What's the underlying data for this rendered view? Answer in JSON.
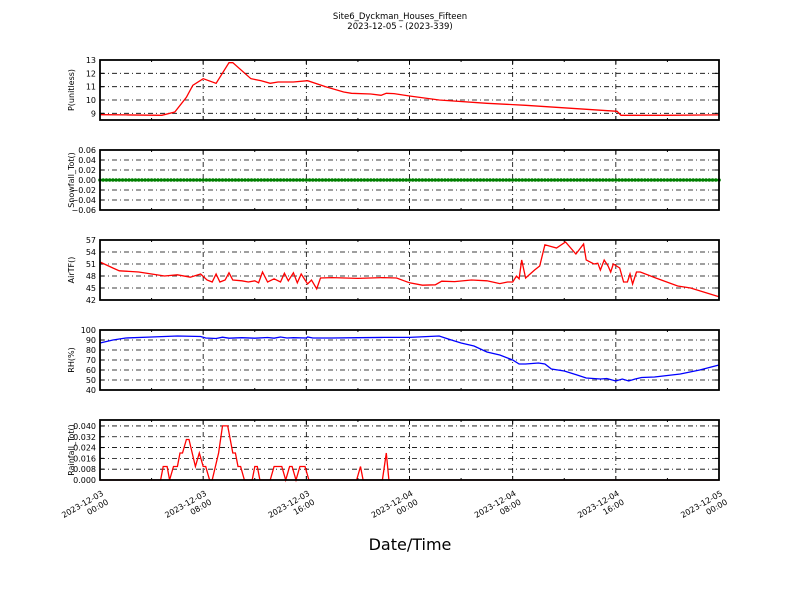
{
  "chart_data": {
    "type": "line",
    "title": "Site6_Dyckman_Houses_Fifteen",
    "subtitle": "2023-12-05 - (2023-339)",
    "xlabel": "Date/Time",
    "x_units": "hours since 2023-12-03 00:00",
    "xlim": [
      0,
      48
    ],
    "x_ticks": [
      0,
      8,
      16,
      24,
      32,
      40,
      48
    ],
    "x_tick_labels": [
      [
        "2023-12-03",
        "00:00"
      ],
      [
        "2023-12-03",
        "08:00"
      ],
      [
        "2023-12-03",
        "16:00"
      ],
      [
        "2023-12-04",
        "00:00"
      ],
      [
        "2023-12-04",
        "08:00"
      ],
      [
        "2023-12-04",
        "16:00"
      ],
      [
        "2023-12-05",
        "00:00"
      ]
    ],
    "grid": true,
    "panels": [
      {
        "name": "p",
        "ylabel": "P(unitless)",
        "color": "#ff0000",
        "ylim": [
          8.5,
          13
        ],
        "y_ticks": [
          9,
          10,
          11,
          12,
          13
        ],
        "y_tick_labels": [
          "9",
          "10",
          "11",
          "12",
          "13"
        ],
        "points": [
          [
            0,
            8.9
          ],
          [
            2,
            8.88
          ],
          [
            4.8,
            8.85
          ],
          [
            5.8,
            9.1
          ],
          [
            6.7,
            10.2
          ],
          [
            7.2,
            11.1
          ],
          [
            8,
            11.6
          ],
          [
            9,
            11.25
          ],
          [
            10,
            12.8
          ],
          [
            10.3,
            12.8
          ],
          [
            11.7,
            11.6
          ],
          [
            12.5,
            11.45
          ],
          [
            13.2,
            11.25
          ],
          [
            13.8,
            11.35
          ],
          [
            15,
            11.35
          ],
          [
            16.1,
            11.45
          ],
          [
            17.5,
            11.0
          ],
          [
            18.9,
            10.6
          ],
          [
            19.5,
            10.5
          ],
          [
            21,
            10.45
          ],
          [
            21.8,
            10.35
          ],
          [
            22.2,
            10.5
          ],
          [
            22.8,
            10.48
          ],
          [
            24,
            10.3
          ],
          [
            26.3,
            10.0
          ],
          [
            30,
            9.75
          ],
          [
            33,
            9.6
          ],
          [
            37,
            9.35
          ],
          [
            40.1,
            9.15
          ],
          [
            40.4,
            8.85
          ],
          [
            44,
            8.85
          ],
          [
            48,
            8.88
          ]
        ]
      },
      {
        "name": "snowfall",
        "ylabel": "Snowfall_Tot()",
        "color": "#007f00",
        "markers": true,
        "ylim": [
          -0.06,
          0.06
        ],
        "y_ticks": [
          -0.06,
          -0.04,
          -0.02,
          0,
          0.02,
          0.04,
          0.06
        ],
        "y_tick_labels": [
          "−0.06",
          "−0.04",
          "−0.02",
          "0.00",
          "0.02",
          "0.04",
          "0.06"
        ],
        "constant_series": {
          "start": 0,
          "end": 48,
          "interval_hours": 0.25,
          "value": 0
        }
      },
      {
        "name": "airt",
        "ylabel": "AirTF()",
        "color": "#ff0000",
        "ylim": [
          42,
          57
        ],
        "y_ticks": [
          42,
          45,
          48,
          51,
          54,
          57
        ],
        "y_tick_labels": [
          "42",
          "45",
          "48",
          "51",
          "54",
          "57"
        ],
        "points": [
          [
            0,
            51.5
          ],
          [
            1,
            50
          ],
          [
            1.5,
            49.3
          ],
          [
            3,
            49
          ],
          [
            4,
            48.5
          ],
          [
            5,
            48
          ],
          [
            6,
            48.3
          ],
          [
            7,
            47.7
          ],
          [
            7.8,
            48.5
          ],
          [
            8.3,
            47
          ],
          [
            8.7,
            46.5
          ],
          [
            9,
            48.5
          ],
          [
            9.3,
            46.5
          ],
          [
            9.7,
            47
          ],
          [
            10,
            48.8
          ],
          [
            10.3,
            47
          ],
          [
            11,
            46.8
          ],
          [
            11.5,
            46.5
          ],
          [
            12,
            46.8
          ],
          [
            12.3,
            46.3
          ],
          [
            12.6,
            49
          ],
          [
            13,
            46.5
          ],
          [
            13.5,
            47.3
          ],
          [
            14,
            46.5
          ],
          [
            14.3,
            48.7
          ],
          [
            14.6,
            46.8
          ],
          [
            15,
            48.8
          ],
          [
            15.3,
            46.3
          ],
          [
            15.6,
            48.5
          ],
          [
            16.1,
            46
          ],
          [
            16.4,
            47
          ],
          [
            16.8,
            44.8
          ],
          [
            17.1,
            47.5
          ],
          [
            18,
            47.6
          ],
          [
            20,
            47.4
          ],
          [
            22,
            47.6
          ],
          [
            23,
            47.5
          ],
          [
            24,
            46.3
          ],
          [
            25,
            45.7
          ],
          [
            26,
            45.8
          ],
          [
            26.5,
            46.7
          ],
          [
            27.5,
            46.6
          ],
          [
            28.8,
            47
          ],
          [
            30,
            46.8
          ],
          [
            31,
            46.1
          ],
          [
            31.6,
            46.5
          ],
          [
            32,
            46.5
          ],
          [
            32.3,
            48
          ],
          [
            32.5,
            47.3
          ],
          [
            32.7,
            52
          ],
          [
            33,
            47.5
          ],
          [
            33.7,
            49.5
          ],
          [
            34.1,
            50.5
          ],
          [
            34.5,
            55.8
          ],
          [
            35.4,
            55
          ],
          [
            36.1,
            56.5
          ],
          [
            36.9,
            53.5
          ],
          [
            37.5,
            56
          ],
          [
            37.7,
            52
          ],
          [
            38.3,
            51
          ],
          [
            38.6,
            51.2
          ],
          [
            38.8,
            49.5
          ],
          [
            39.1,
            52
          ],
          [
            39.4,
            50.5
          ],
          [
            39.6,
            49
          ],
          [
            39.8,
            51
          ],
          [
            40.3,
            50
          ],
          [
            40.6,
            46.5
          ],
          [
            40.9,
            46.5
          ],
          [
            41.1,
            48.5
          ],
          [
            41.3,
            46
          ],
          [
            41.6,
            49
          ],
          [
            41.9,
            49
          ],
          [
            43.1,
            47.5
          ],
          [
            44.8,
            45.5
          ],
          [
            45.8,
            45
          ],
          [
            48,
            42.8
          ]
        ]
      },
      {
        "name": "rh",
        "ylabel": "RH(%)",
        "color": "#0000ff",
        "ylim": [
          40,
          100
        ],
        "y_ticks": [
          40,
          50,
          60,
          70,
          80,
          90,
          100
        ],
        "y_tick_labels": [
          "40",
          "50",
          "60",
          "70",
          "80",
          "90",
          "100"
        ],
        "points": [
          [
            0,
            87
          ],
          [
            1,
            90
          ],
          [
            2,
            92
          ],
          [
            4,
            93
          ],
          [
            6,
            94
          ],
          [
            7.8,
            93.5
          ],
          [
            8.2,
            92
          ],
          [
            9,
            91.5
          ],
          [
            9.5,
            92.8
          ],
          [
            10,
            91.8
          ],
          [
            11,
            92.3
          ],
          [
            12,
            91.8
          ],
          [
            13,
            92.5
          ],
          [
            13.5,
            91.8
          ],
          [
            14,
            93
          ],
          [
            14.5,
            92
          ],
          [
            15,
            92.3
          ],
          [
            16,
            92
          ],
          [
            16.1,
            93
          ],
          [
            16.5,
            92
          ],
          [
            18,
            92
          ],
          [
            20,
            92.3
          ],
          [
            22,
            92.6
          ],
          [
            24,
            92.6
          ],
          [
            26.3,
            94
          ],
          [
            27,
            91
          ],
          [
            28,
            87
          ],
          [
            29,
            84
          ],
          [
            30,
            78
          ],
          [
            31,
            75
          ],
          [
            32,
            70
          ],
          [
            32.5,
            66
          ],
          [
            33,
            66
          ],
          [
            34,
            67
          ],
          [
            34.5,
            66
          ],
          [
            35,
            61
          ],
          [
            36,
            59
          ],
          [
            37,
            55
          ],
          [
            37.7,
            52
          ],
          [
            38.8,
            51
          ],
          [
            39.3,
            51.5
          ],
          [
            40,
            49
          ],
          [
            40.5,
            51
          ],
          [
            41,
            49
          ],
          [
            41.5,
            51
          ],
          [
            42,
            52.5
          ],
          [
            43,
            53
          ],
          [
            45,
            56
          ],
          [
            46.5,
            60
          ],
          [
            48,
            65
          ]
        ]
      },
      {
        "name": "rainfall",
        "ylabel": "Rainfall_Tot()",
        "color": "#ff0000",
        "ylim": [
          0,
          0.0444
        ],
        "y_ticks": [
          0,
          0.008,
          0.016,
          0.024,
          0.032,
          0.04
        ],
        "y_tick_labels": [
          "0.000",
          "0.008",
          "0.016",
          "0.024",
          "0.032",
          "0.040"
        ],
        "points": [
          [
            0,
            0
          ],
          [
            4.7,
            0
          ],
          [
            4.9,
            0.01
          ],
          [
            5.2,
            0.01
          ],
          [
            5.4,
            0
          ],
          [
            5.7,
            0.01
          ],
          [
            6.0,
            0.01
          ],
          [
            6.2,
            0.02
          ],
          [
            6.4,
            0.02
          ],
          [
            6.7,
            0.03
          ],
          [
            6.9,
            0.03
          ],
          [
            7.4,
            0.01
          ],
          [
            7.7,
            0.02
          ],
          [
            8.0,
            0.01
          ],
          [
            8.2,
            0.01
          ],
          [
            8.5,
            0
          ],
          [
            8.7,
            0
          ],
          [
            9.2,
            0.02
          ],
          [
            9.5,
            0.04
          ],
          [
            9.9,
            0.04
          ],
          [
            10.3,
            0.02
          ],
          [
            10.5,
            0.02
          ],
          [
            10.7,
            0.01
          ],
          [
            10.9,
            0.01
          ],
          [
            11.2,
            0
          ],
          [
            11.8,
            0
          ],
          [
            12.0,
            0.01
          ],
          [
            12.2,
            0.01
          ],
          [
            12.4,
            0
          ],
          [
            13.2,
            0
          ],
          [
            13.5,
            0.01
          ],
          [
            14.1,
            0.01
          ],
          [
            14.4,
            0
          ],
          [
            14.7,
            0.01
          ],
          [
            14.9,
            0.01
          ],
          [
            15.2,
            0
          ],
          [
            15.5,
            0.01
          ],
          [
            15.9,
            0.01
          ],
          [
            16.2,
            0
          ],
          [
            19.9,
            0
          ],
          [
            20.2,
            0.01
          ],
          [
            20.4,
            0
          ],
          [
            21.9,
            0
          ],
          [
            22.2,
            0.02
          ],
          [
            22.4,
            0
          ],
          [
            48,
            0
          ]
        ]
      }
    ]
  }
}
